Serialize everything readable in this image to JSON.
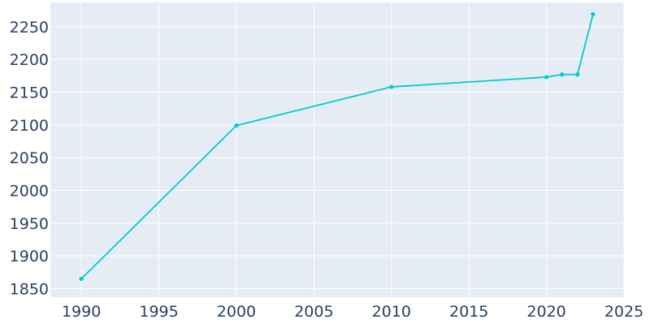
{
  "chart_data": {
    "type": "line",
    "title": "",
    "xlabel": "",
    "ylabel": "",
    "xlim": [
      1988,
      2025
    ],
    "ylim": [
      1837,
      2287
    ],
    "x_ticks": [
      1990,
      1995,
      2000,
      2005,
      2010,
      2015,
      2020,
      2025
    ],
    "y_ticks": [
      1850,
      1900,
      1950,
      2000,
      2050,
      2100,
      2150,
      2200,
      2250
    ],
    "grid": true,
    "legend": "none",
    "series": [
      {
        "x": [
          1990,
          2000,
          2010,
          2020,
          2021,
          2022,
          2023
        ],
        "y": [
          1865,
          2099,
          2158,
          2173,
          2177,
          2177,
          2269
        ]
      }
    ],
    "colors": {
      "plot_background": "#e5ecf6",
      "grid": "#ffffff",
      "line": "#00cccc",
      "tick_text": "#2a3f5f"
    }
  }
}
